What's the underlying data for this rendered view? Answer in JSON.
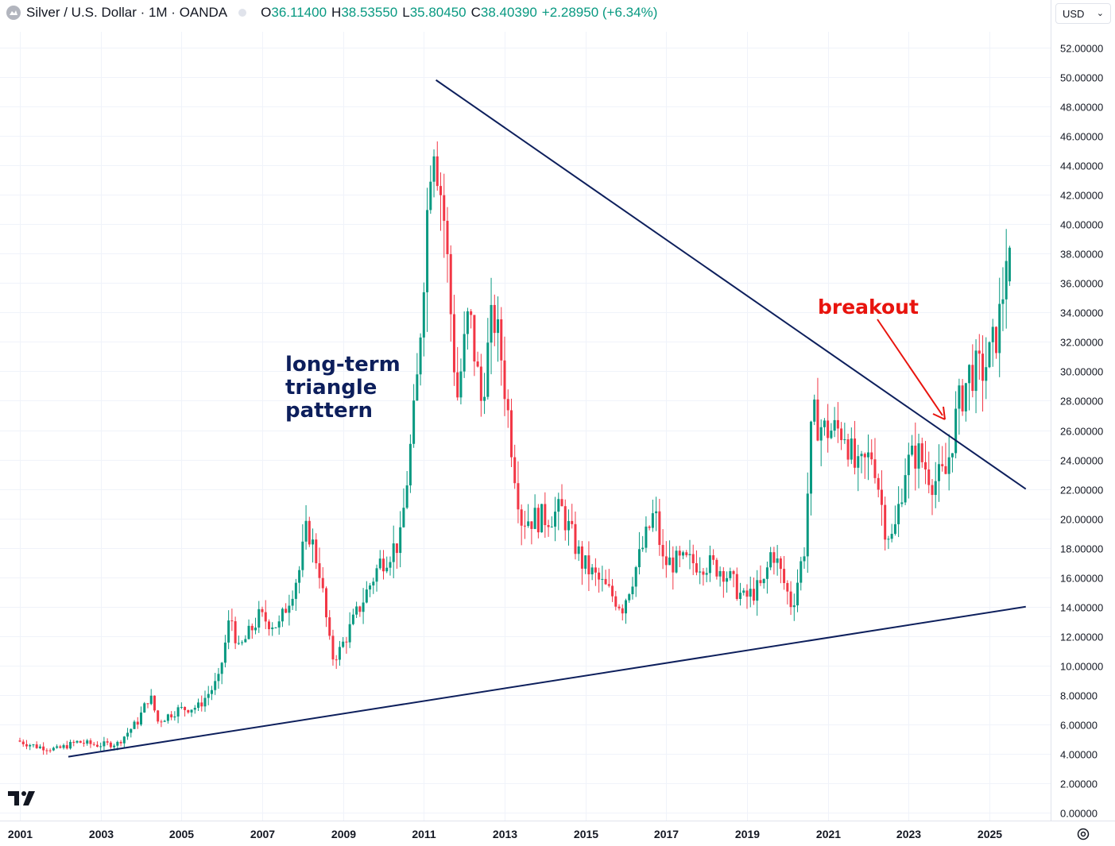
{
  "header": {
    "symbol": "Silver / U.S. Dollar · 1M · OANDA",
    "open_label": "O",
    "open": "36.11400",
    "high_label": "H",
    "high": "38.53550",
    "low_label": "L",
    "low": "35.80450",
    "close_label": "C",
    "close": "38.40390",
    "change": "+2.28950 (+6.34%)"
  },
  "currency_select": {
    "value": "USD"
  },
  "colors": {
    "up": "#089981",
    "down": "#f23645",
    "trendline": "#0d1f5c",
    "annotation": "#e8140e",
    "grid": "#f0f3fa"
  },
  "icons": {
    "logo": "silver-coin-icon",
    "tv": "tradingview-logo-icon",
    "settings": "settings-gear-icon"
  },
  "annotations": {
    "pattern_label": [
      "long-term",
      "triangle",
      "pattern"
    ],
    "breakout_label": "breakout"
  },
  "chart_data": {
    "type": "candlestick",
    "interval": "1M",
    "ylim": [
      0,
      52
    ],
    "y_ticks": [
      "0.00000",
      "2.00000",
      "4.00000",
      "6.00000",
      "8.00000",
      "10.00000",
      "12.00000",
      "14.00000",
      "16.00000",
      "18.00000",
      "20.00000",
      "22.00000",
      "24.00000",
      "26.00000",
      "28.00000",
      "30.00000",
      "32.00000",
      "34.00000",
      "36.00000",
      "38.00000",
      "40.00000",
      "42.00000",
      "44.00000",
      "46.00000",
      "48.00000",
      "50.00000",
      "52.00000"
    ],
    "x_ticks": [
      "2001",
      "2003",
      "2005",
      "2007",
      "2009",
      "2011",
      "2013",
      "2015",
      "2017",
      "2019",
      "2021",
      "2023",
      "2025"
    ],
    "xlim": [
      2001.0,
      2026.6
    ],
    "anchors": [
      [
        2001.0,
        4.9
      ],
      [
        2001.5,
        4.5
      ],
      [
        2002.0,
        4.3
      ],
      [
        2002.5,
        4.8
      ],
      [
        2003.0,
        4.6
      ],
      [
        2003.5,
        4.7
      ],
      [
        2004.0,
        6.2
      ],
      [
        2004.3,
        8.0
      ],
      [
        2004.5,
        6.2
      ],
      [
        2005.0,
        7.0
      ],
      [
        2005.5,
        7.2
      ],
      [
        2006.0,
        9.0
      ],
      [
        2006.3,
        13.5
      ],
      [
        2006.5,
        11.0
      ],
      [
        2007.0,
        13.3
      ],
      [
        2007.5,
        12.7
      ],
      [
        2008.0,
        16.5
      ],
      [
        2008.2,
        19.5
      ],
      [
        2008.5,
        16.5
      ],
      [
        2008.8,
        10.5
      ],
      [
        2009.0,
        11.0
      ],
      [
        2009.5,
        14.0
      ],
      [
        2010.0,
        17.0
      ],
      [
        2010.5,
        18.5
      ],
      [
        2010.9,
        28.5
      ],
      [
        2011.3,
        47.0
      ],
      [
        2011.6,
        40.0
      ],
      [
        2011.9,
        28.0
      ],
      [
        2012.2,
        34.0
      ],
      [
        2012.5,
        28.0
      ],
      [
        2012.8,
        34.0
      ],
      [
        2013.0,
        31.0
      ],
      [
        2013.3,
        24.0
      ],
      [
        2013.5,
        20.0
      ],
      [
        2014.0,
        20.0
      ],
      [
        2014.5,
        20.5
      ],
      [
        2015.0,
        17.0
      ],
      [
        2015.5,
        15.5
      ],
      [
        2016.0,
        14.0
      ],
      [
        2016.5,
        18.0
      ],
      [
        2016.8,
        20.5
      ],
      [
        2017.0,
        17.0
      ],
      [
        2017.5,
        17.0
      ],
      [
        2018.0,
        17.0
      ],
      [
        2018.5,
        16.5
      ],
      [
        2019.0,
        14.5
      ],
      [
        2019.5,
        15.5
      ],
      [
        2019.7,
        18.0
      ],
      [
        2020.2,
        14.0
      ],
      [
        2020.5,
        18.0
      ],
      [
        2020.7,
        27.0
      ],
      [
        2021.0,
        26.0
      ],
      [
        2021.2,
        26.0
      ],
      [
        2021.5,
        26.0
      ],
      [
        2021.8,
        23.0
      ],
      [
        2022.2,
        24.5
      ],
      [
        2022.5,
        19.5
      ],
      [
        2022.7,
        18.5
      ],
      [
        2023.0,
        23.5
      ],
      [
        2023.3,
        24.5
      ],
      [
        2023.7,
        22.5
      ],
      [
        2024.0,
        23.0
      ],
      [
        2024.3,
        27.5
      ],
      [
        2024.6,
        30.0
      ],
      [
        2024.9,
        30.0
      ],
      [
        2025.1,
        31.0
      ],
      [
        2025.3,
        33.0
      ],
      [
        2025.45,
        36.1
      ],
      [
        2025.5,
        38.4
      ]
    ],
    "trendlines": [
      {
        "name": "upper",
        "from": [
          2011.3,
          49.8
        ],
        "to": [
          2025.9,
          22.0
        ]
      },
      {
        "name": "lower",
        "from": [
          2002.2,
          3.8
        ],
        "to": [
          2025.9,
          14.0
        ]
      }
    ],
    "last_bar": {
      "open": 36.114,
      "high": 38.5355,
      "low": 35.8045,
      "close": 38.4039
    }
  }
}
